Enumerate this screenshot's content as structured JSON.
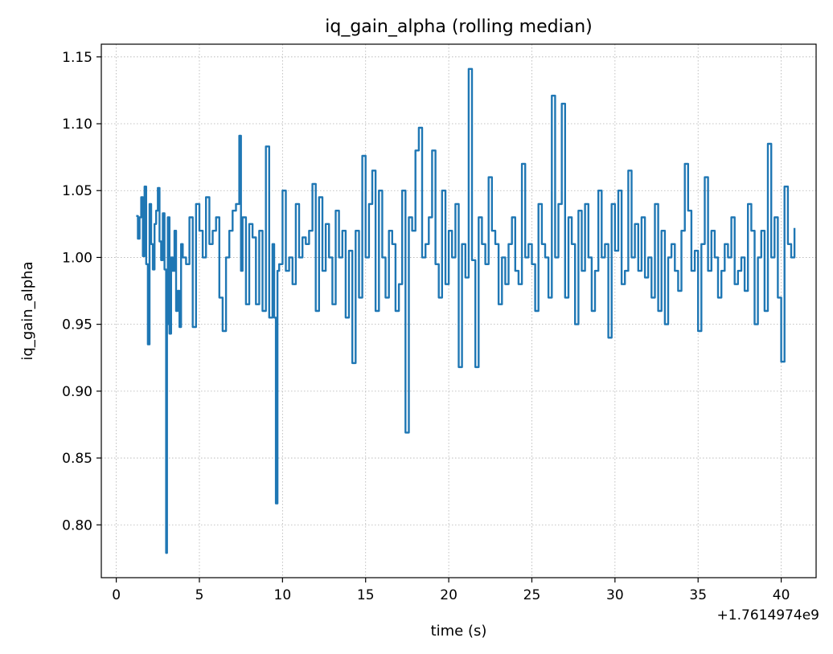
{
  "chart_data": {
    "type": "line",
    "title": "iq_gain_alpha (rolling median)",
    "xlabel": "time (s)",
    "ylabel": "iq_gain_alpha",
    "x_offset_label": "+1.7614974e9",
    "xlim": [
      -0.9,
      42.1
    ],
    "ylim": [
      0.7605,
      1.1595
    ],
    "x_ticks": [
      0,
      5,
      10,
      15,
      20,
      25,
      30,
      35,
      40
    ],
    "y_ticks": [
      0.8,
      0.85,
      0.9,
      0.95,
      1.0,
      1.05,
      1.1,
      1.15
    ],
    "x_tick_labels": [
      "0",
      "5",
      "10",
      "15",
      "20",
      "25",
      "30",
      "35",
      "40"
    ],
    "y_tick_labels": [
      "0.80",
      "0.85",
      "0.90",
      "0.95",
      "1.00",
      "1.05",
      "1.10",
      "1.15"
    ],
    "grid": true,
    "legend": false,
    "line_color": "#1f77b4",
    "series": [
      {
        "x": [
          1.2,
          1.3,
          1.4,
          1.5,
          1.6,
          1.7,
          1.8,
          1.9,
          2.0,
          2.1,
          2.2,
          2.3,
          2.4,
          2.5,
          2.6,
          2.7,
          2.8,
          2.9,
          3.0,
          3.05,
          3.1,
          3.2,
          3.3,
          3.4,
          3.5,
          3.6,
          3.7,
          3.8,
          3.9,
          4.0,
          4.2,
          4.4,
          4.6,
          4.8,
          5.0,
          5.2,
          5.4,
          5.6,
          5.8,
          6.0,
          6.2,
          6.4,
          6.6,
          6.8,
          7.0,
          7.2,
          7.4,
          7.5,
          7.6,
          7.8,
          8.0,
          8.2,
          8.4,
          8.6,
          8.8,
          9.0,
          9.2,
          9.4,
          9.5,
          9.6,
          9.7,
          9.8,
          10.0,
          10.2,
          10.4,
          10.6,
          10.8,
          11.0,
          11.2,
          11.4,
          11.6,
          11.8,
          12.0,
          12.2,
          12.4,
          12.6,
          12.8,
          13.0,
          13.2,
          13.4,
          13.6,
          13.8,
          14.0,
          14.2,
          14.4,
          14.6,
          14.8,
          15.0,
          15.2,
          15.4,
          15.6,
          15.8,
          16.0,
          16.2,
          16.4,
          16.6,
          16.8,
          17.0,
          17.2,
          17.4,
          17.6,
          17.8,
          18.0,
          18.2,
          18.4,
          18.6,
          18.8,
          19.0,
          19.2,
          19.4,
          19.6,
          19.8,
          20.0,
          20.2,
          20.4,
          20.6,
          20.8,
          21.0,
          21.2,
          21.4,
          21.6,
          21.8,
          22.0,
          22.2,
          22.4,
          22.6,
          22.8,
          23.0,
          23.2,
          23.4,
          23.6,
          23.8,
          24.0,
          24.2,
          24.4,
          24.6,
          24.8,
          25.0,
          25.2,
          25.4,
          25.6,
          25.8,
          26.0,
          26.2,
          26.4,
          26.6,
          26.8,
          27.0,
          27.2,
          27.4,
          27.6,
          27.8,
          28.0,
          28.2,
          28.4,
          28.6,
          28.8,
          29.0,
          29.2,
          29.4,
          29.6,
          29.8,
          30.0,
          30.2,
          30.4,
          30.6,
          30.8,
          31.0,
          31.2,
          31.4,
          31.6,
          31.8,
          32.0,
          32.2,
          32.4,
          32.6,
          32.8,
          33.0,
          33.2,
          33.4,
          33.6,
          33.8,
          34.0,
          34.2,
          34.4,
          34.6,
          34.8,
          35.0,
          35.2,
          35.4,
          35.6,
          35.8,
          36.0,
          36.2,
          36.4,
          36.6,
          36.8,
          37.0,
          37.2,
          37.4,
          37.6,
          37.8,
          38.0,
          38.2,
          38.4,
          38.6,
          38.8,
          39.0,
          39.2,
          39.4,
          39.6,
          39.8,
          40.0,
          40.2,
          40.4,
          40.6,
          40.8
        ],
        "y": [
          1.031,
          1.014,
          1.03,
          1.045,
          1.001,
          1.053,
          0.995,
          0.935,
          1.04,
          1.01,
          0.991,
          1.025,
          1.035,
          1.052,
          1.012,
          0.998,
          1.033,
          0.991,
          0.779,
          0.95,
          1.03,
          0.943,
          1.0,
          0.99,
          1.02,
          0.96,
          0.975,
          0.948,
          1.01,
          1.0,
          0.995,
          1.03,
          0.948,
          1.04,
          1.02,
          1.0,
          1.045,
          1.01,
          1.02,
          1.03,
          0.97,
          0.945,
          1.0,
          1.02,
          1.035,
          1.04,
          1.091,
          0.99,
          1.03,
          0.965,
          1.025,
          1.015,
          0.965,
          1.02,
          0.96,
          1.083,
          0.955,
          1.01,
          0.955,
          0.816,
          0.99,
          0.995,
          1.05,
          0.99,
          1.0,
          0.98,
          1.04,
          1.0,
          1.015,
          1.01,
          1.02,
          1.055,
          0.96,
          1.045,
          0.99,
          1.025,
          1.0,
          0.965,
          1.035,
          1.0,
          1.02,
          0.955,
          1.005,
          0.921,
          1.02,
          0.97,
          1.076,
          1.0,
          1.04,
          1.065,
          0.96,
          1.05,
          1.0,
          0.97,
          1.02,
          1.01,
          0.96,
          0.98,
          1.05,
          0.869,
          1.03,
          1.02,
          1.08,
          1.097,
          1.0,
          1.01,
          1.03,
          1.08,
          0.995,
          0.97,
          1.05,
          0.98,
          1.02,
          1.0,
          1.04,
          0.918,
          1.01,
          0.985,
          1.141,
          0.998,
          0.918,
          1.03,
          1.01,
          0.995,
          1.06,
          1.02,
          1.01,
          0.965,
          1.0,
          0.98,
          1.01,
          1.03,
          0.99,
          0.98,
          1.07,
          1.0,
          1.01,
          0.995,
          0.96,
          1.04,
          1.01,
          1.0,
          0.97,
          1.121,
          1.0,
          1.04,
          1.115,
          0.97,
          1.03,
          1.01,
          0.95,
          1.035,
          0.99,
          1.04,
          1.0,
          0.96,
          0.99,
          1.05,
          1.0,
          1.01,
          0.94,
          1.04,
          1.005,
          1.05,
          0.98,
          0.99,
          1.065,
          1.0,
          1.025,
          0.99,
          1.03,
          0.985,
          1.0,
          0.97,
          1.04,
          0.96,
          1.02,
          0.95,
          1.0,
          1.01,
          0.99,
          0.975,
          1.02,
          1.07,
          1.035,
          0.99,
          1.005,
          0.945,
          1.01,
          1.06,
          0.99,
          1.02,
          1.0,
          0.97,
          0.99,
          1.01,
          1.0,
          1.03,
          0.98,
          0.99,
          1.0,
          0.975,
          1.04,
          1.02,
          0.95,
          1.0,
          1.02,
          0.96,
          1.085,
          1.0,
          1.03,
          0.97,
          0.922,
          1.053,
          1.01,
          1.0,
          1.022
        ]
      }
    ]
  }
}
